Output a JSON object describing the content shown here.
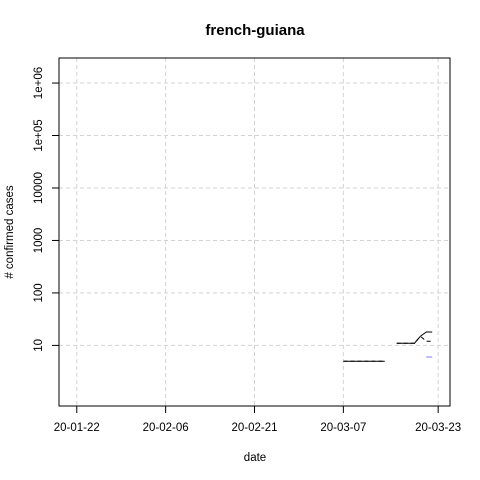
{
  "chart_data": {
    "type": "line",
    "title": "french-guiana",
    "xlabel": "date",
    "ylabel": "# confirmed cases",
    "y_scale": "log",
    "x_ticks": [
      "20-01-22",
      "20-02-06",
      "20-02-21",
      "20-03-07",
      "20-03-23"
    ],
    "y_ticks": [
      "10",
      "100",
      "1000",
      "10000",
      "1e+05",
      "1e+06"
    ],
    "xlim": [
      "2020-01-19",
      "2020-03-25"
    ],
    "ylim": [
      0.7,
      3000000
    ],
    "grid": true,
    "series": [
      {
        "style": "solid",
        "color": "#000000",
        "points": [
          [
            "2020-03-07",
            5
          ],
          [
            "2020-03-08",
            5
          ],
          [
            "2020-03-09",
            5
          ],
          [
            "2020-03-10",
            5
          ],
          [
            "2020-03-11",
            5
          ],
          [
            "2020-03-12",
            5
          ],
          [
            "2020-03-13",
            5
          ],
          [
            "2020-03-14",
            5
          ],
          [
            "2020-03-16",
            11
          ],
          [
            "2020-03-17",
            11
          ],
          [
            "2020-03-18",
            11
          ],
          [
            "2020-03-19",
            11
          ],
          [
            "2020-03-20",
            15
          ],
          [
            "2020-03-21",
            18
          ],
          [
            "2020-03-22",
            18
          ]
        ]
      },
      {
        "style": "dashed",
        "color": "#000000",
        "points": [
          [
            "2020-03-07",
            5
          ],
          [
            "2020-03-08",
            5
          ],
          [
            "2020-03-09",
            5
          ],
          [
            "2020-03-10",
            5
          ],
          [
            "2020-03-11",
            5
          ],
          [
            "2020-03-12",
            5
          ],
          [
            "2020-03-13",
            5
          ],
          [
            "2020-03-14",
            5
          ],
          [
            "2020-03-16",
            11
          ],
          [
            "2020-03-17",
            11
          ],
          [
            "2020-03-18",
            11
          ],
          [
            "2020-03-19",
            11
          ],
          [
            "2020-03-20",
            15
          ],
          [
            "2020-03-21",
            12
          ],
          [
            "2020-03-22",
            12
          ]
        ]
      },
      {
        "style": "solid",
        "color": "#7b7bff",
        "points": [
          [
            "2020-03-21",
            6
          ],
          [
            "2020-03-22",
            6
          ]
        ]
      }
    ]
  }
}
